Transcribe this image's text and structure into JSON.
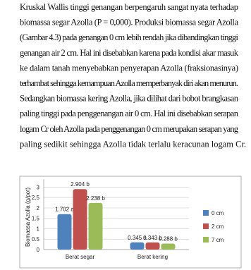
{
  "document": {
    "lines": [
      "Kruskal Wallis tinggi genangan berpengaruh sangat nyata terhadap",
      "biomassa segar Azolla (P = 0,000). Produksi biomassa segar Azolla",
      "(Gambar 4.3) pada genangan 0 cm lebih rendah jika dibandingkan tinggi",
      "genangan air 2 cm. Hal ini disebabkan karena pada kondisi akar masuk",
      "ke dalam tanah menyebabkan penyerapan Azolla (fraksionasinya)",
      "terhambat sehingga kemampuan Azolla memperbanyak diri akan menurun.",
      "Sedangkan biomassa kering Azolla, jika dilihat dari bobot brangkasan",
      "paling tinggi pada penggenangan air 0 cm. Hal ini disebabkan serapan",
      "logam Cr oleh Azolla pada penggenangan 0 cm merupakan serapan yang",
      "paling sedikit sehingga Azolla tidak terlalu keracunan logam Cr."
    ]
  },
  "chart_data": {
    "type": "bar",
    "y_label": "Biomassa Azolla (g/pot)",
    "categories": [
      "Berat segar",
      "Berat kering"
    ],
    "series": [
      {
        "name": "0 cm",
        "color": "#4f81bd",
        "values": [
          1.702,
          0.345
        ],
        "value_labels": [
          "1.702 a",
          "0.345 a"
        ]
      },
      {
        "name": "2 cm",
        "color": "#c0504d",
        "values": [
          2.904,
          0.343
        ],
        "value_labels": [
          "2.904 b",
          "0.343 b"
        ]
      },
      {
        "name": "7 cm",
        "color": "#9bbb59",
        "values": [
          2.238,
          0.288
        ],
        "value_labels": [
          "2.238 b",
          "0.288 b"
        ]
      }
    ],
    "ylim": [
      0,
      3.25
    ],
    "yticks": [
      0,
      0.5,
      1,
      1.5,
      2,
      2.5,
      3
    ],
    "grid": true,
    "legend": "right"
  }
}
